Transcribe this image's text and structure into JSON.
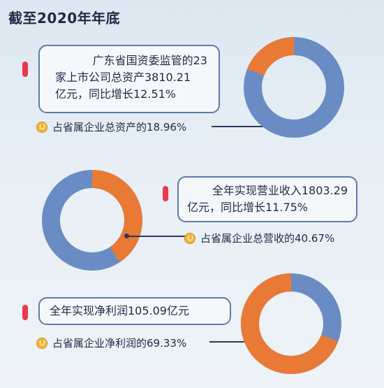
{
  "title": "截至2020年年底",
  "colors": {
    "share": "#e97a35",
    "rest": "#6a8cc4",
    "accent": "#e9394d",
    "text": "#1f2a44"
  },
  "blocks": [
    {
      "text_line1": "广东省国资委监管的23",
      "text_line2": "家上市公司总资产3810.21",
      "text_line3": "亿元，同比增长12.51%",
      "note": "占省属企业总资产的18.96%",
      "note_icon": "medal-icon"
    },
    {
      "text_line1": "全年实现营业收入1803.29",
      "text_line2": "亿元，同比增长11.75%",
      "note": "占省属企业总营收的40.67%",
      "note_icon": "medal-icon"
    },
    {
      "text_line1": "全年实现净利润105.09亿元",
      "note": "占省属企业净利润的69.33%",
      "note_icon": "medal-icon"
    }
  ],
  "chart_data": [
    {
      "type": "pie",
      "subtype": "donut",
      "series": [
        {
          "values": [
            18.96,
            81.04
          ]
        }
      ]
    },
    {
      "type": "pie",
      "subtype": "donut",
      "series": [
        {
          "values": [
            40.67,
            59.33
          ]
        }
      ]
    },
    {
      "type": "pie",
      "subtype": "donut",
      "series": [
        {
          "values": [
            69.33,
            30.67
          ]
        }
      ]
    }
  ]
}
